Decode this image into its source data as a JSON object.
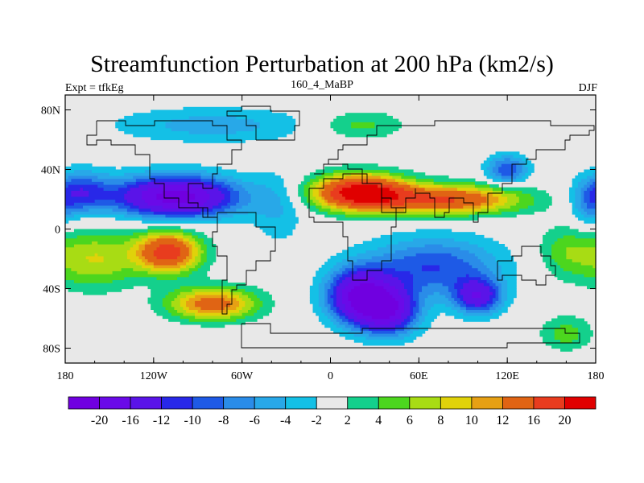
{
  "chart_data": {
    "type": "heatmap",
    "title": "Streamfunction Perturbation at 200 hPa (km2/s)",
    "left_string": "Expt = tfkEg",
    "center_string": "160_4_MaBP",
    "right_string": "DJF",
    "xlim": [
      -180,
      180
    ],
    "ylim": [
      -90,
      90
    ],
    "x_tick_labels": [
      "180",
      "120W",
      "60W",
      "0",
      "60E",
      "120E",
      "180"
    ],
    "x_tick_values": [
      -180,
      -120,
      -60,
      0,
      60,
      120,
      180
    ],
    "y_tick_labels": [
      "80N",
      "40N",
      "0",
      "40S",
      "80S"
    ],
    "y_tick_values": [
      80,
      40,
      0,
      -40,
      -80
    ],
    "contour_levels": [
      -20,
      -16,
      -12,
      -10,
      -8,
      -6,
      -4,
      -2,
      2,
      4,
      6,
      8,
      10,
      12,
      16,
      20
    ],
    "colorbar_labels": [
      "-20",
      "-16",
      "-12",
      "-10",
      "-8",
      "-6",
      "-4",
      "-2",
      "2",
      "4",
      "6",
      "8",
      "10",
      "12",
      "16",
      "20"
    ],
    "colors": [
      "#7000e0",
      "#6a0ae8",
      "#5a14e8",
      "#2828e8",
      "#1e5ae6",
      "#2a8ce8",
      "#28a8e8",
      "#14c0e6",
      "#e8e8e8",
      "#14d08c",
      "#4cd61e",
      "#a8dc14",
      "#e0d20a",
      "#e6a014",
      "#e06414",
      "#e83c1e",
      "#e00000"
    ],
    "field_centers": [
      {
        "lon": -105,
        "lat": 22,
        "value": -22,
        "slon": 42,
        "slat": 14
      },
      {
        "lon": -170,
        "lat": 25,
        "value": -10,
        "slon": 20,
        "slat": 14
      },
      {
        "lon": 20,
        "lat": -45,
        "value": -20,
        "slon": 22,
        "slat": 18
      },
      {
        "lon": 40,
        "lat": -55,
        "value": -16,
        "slon": 20,
        "slat": 16
      },
      {
        "lon": 70,
        "lat": -25,
        "value": -10,
        "slon": 45,
        "slat": 20
      },
      {
        "lon": 100,
        "lat": -45,
        "value": -14,
        "slon": 16,
        "slat": 12
      },
      {
        "lon": 120,
        "lat": 40,
        "value": -10,
        "slon": 14,
        "slat": 10
      },
      {
        "lon": -80,
        "lat": 70,
        "value": -5,
        "slon": 70,
        "slat": 12
      },
      {
        "lon": -35,
        "lat": 15,
        "value": -4,
        "slon": 18,
        "slat": 25
      },
      {
        "lon": 175,
        "lat": 15,
        "value": -5,
        "slon": 12,
        "slat": 15
      },
      {
        "lon": 20,
        "lat": 25,
        "value": 22,
        "slon": 32,
        "slat": 12
      },
      {
        "lon": 80,
        "lat": 20,
        "value": 16,
        "slon": 50,
        "slat": 10
      },
      {
        "lon": 20,
        "lat": 70,
        "value": 5,
        "slon": 30,
        "slat": 10
      },
      {
        "lon": -110,
        "lat": -15,
        "value": 18,
        "slon": 22,
        "slat": 14
      },
      {
        "lon": -80,
        "lat": -50,
        "value": 14,
        "slon": 30,
        "slat": 11
      },
      {
        "lon": -160,
        "lat": -20,
        "value": 8,
        "slon": 30,
        "slat": 20
      },
      {
        "lon": 160,
        "lat": -15,
        "value": 5,
        "slon": 20,
        "slat": 18
      },
      {
        "lon": 160,
        "lat": -70,
        "value": 5,
        "slon": 18,
        "slat": 12
      }
    ]
  }
}
